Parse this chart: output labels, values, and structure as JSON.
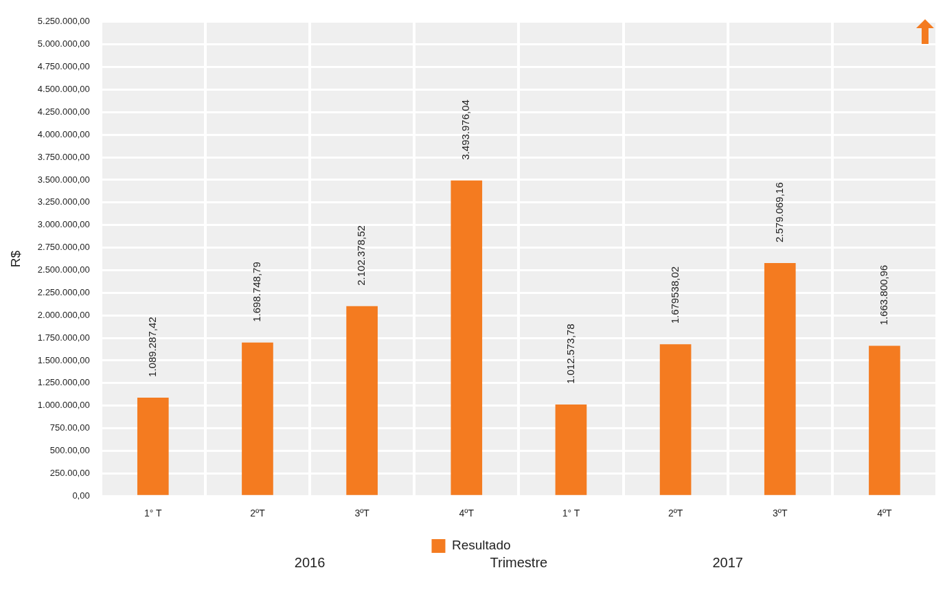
{
  "chart_data": {
    "type": "bar",
    "xlabel": "Trimestre",
    "ylabel": "R$",
    "categories": [
      "1° T",
      "2ºT",
      "3ºT",
      "4ºT",
      "1° T",
      "2ºT",
      "3ºT",
      "4ºT"
    ],
    "series": [
      {
        "name": "Resultado",
        "color": "#f47b20",
        "values": [
          1089287.42,
          1698748.79,
          2102378.52,
          3493976.04,
          1012573.78,
          1679538.02,
          2579069.16,
          1663800.96
        ],
        "value_labels": [
          "1.089.287,42",
          "1.698.748,79",
          "2.102.378,52",
          "3.493.976,04",
          "1.012.573,78",
          "1.679538,02",
          "2.579.069,16",
          "1.663.800,96"
        ]
      }
    ],
    "ylim": [
      0,
      5250000
    ],
    "yticks": [
      {
        "value": 0,
        "label": "0,00"
      },
      {
        "value": 250000,
        "label": "250.00,00"
      },
      {
        "value": 500000,
        "label": "500.00,00"
      },
      {
        "value": 750000,
        "label": "750.00,00"
      },
      {
        "value": 1000000,
        "label": "1.000.000,00"
      },
      {
        "value": 1250000,
        "label": "1.250.000,00"
      },
      {
        "value": 1500000,
        "label": "1.500.000,00"
      },
      {
        "value": 1750000,
        "label": "1.750.000,00"
      },
      {
        "value": 2000000,
        "label": "2.000.000,00"
      },
      {
        "value": 2250000,
        "label": "2.250.000,00"
      },
      {
        "value": 2500000,
        "label": "2.500.000,00"
      },
      {
        "value": 2750000,
        "label": "2.750.000,00"
      },
      {
        "value": 3000000,
        "label": "3.000.000,00"
      },
      {
        "value": 3250000,
        "label": "3.250.000,00"
      },
      {
        "value": 3500000,
        "label": "3.500.000,00"
      },
      {
        "value": 3750000,
        "label": "3.750.000,00"
      },
      {
        "value": 4000000,
        "label": "4.000.000,00"
      },
      {
        "value": 4250000,
        "label": "4.250.000,00"
      },
      {
        "value": 4500000,
        "label": "4.500.000,00"
      },
      {
        "value": 4750000,
        "label": "4.750.000,00"
      },
      {
        "value": 5000000,
        "label": "5.000.000,00"
      },
      {
        "value": 5250000,
        "label": "5.250.000,00"
      }
    ],
    "annotations": [
      "2016",
      "2017"
    ],
    "grid": true,
    "legend": "bottom"
  }
}
